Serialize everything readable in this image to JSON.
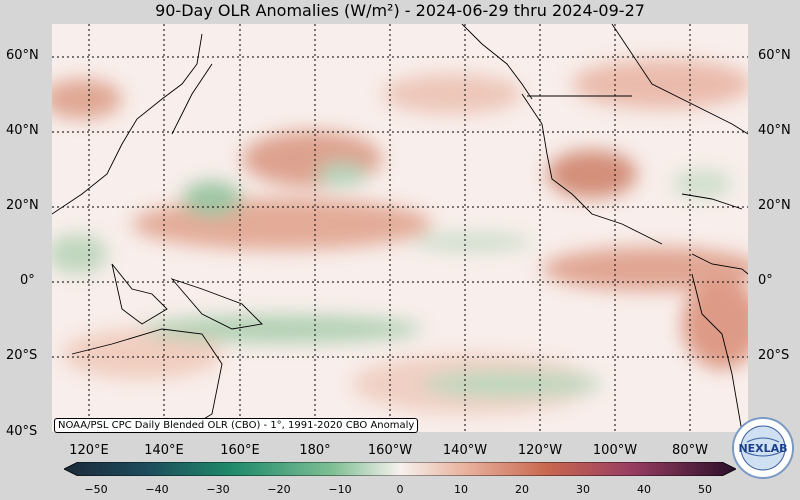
{
  "title": "90-Day OLR Anomalies (W/m²) - 2024-06-29 thru 2024-09-27",
  "credit": "NOAA/PSL CPC Daily Blended OLR (CBO) - 1°, 1991-2020 CBO Anomaly",
  "lat_labels": [
    "60°N",
    "40°N",
    "20°N",
    "0°",
    "20°S",
    "40°S"
  ],
  "lon_labels": [
    "120°E",
    "140°E",
    "160°E",
    "180°",
    "160°W",
    "140°W",
    "120°W",
    "100°W",
    "80°W"
  ],
  "colorbar": {
    "ticks": [
      "−50",
      "−40",
      "−30",
      "−20",
      "−10",
      "0",
      "10",
      "20",
      "30",
      "40",
      "50"
    ],
    "min": -50,
    "max": 50,
    "negative_color": "#1f8a6a",
    "positive_color": "#b83c28",
    "neutral_color": "#f7f1ee"
  },
  "logo_text": "NEXLAB",
  "colors": {
    "background": "#d6d6d6",
    "anomaly_positive": "#d89a84",
    "anomaly_negative": "#9fc7a5"
  }
}
